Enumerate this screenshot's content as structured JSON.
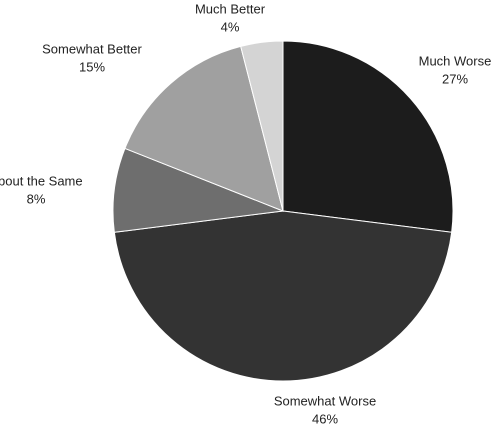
{
  "chart_data": {
    "type": "pie",
    "categories": [
      "Much Worse",
      "Somewhat Worse",
      "About the Same",
      "Somewhat Better",
      "Much Better"
    ],
    "values": [
      27,
      46,
      8,
      15,
      4
    ],
    "value_labels": [
      "27%",
      "46%",
      "8%",
      "15%",
      "4%"
    ],
    "colors": [
      "#1c1c1c",
      "#333333",
      "#6e6e6e",
      "#a0a0a0",
      "#d4d4d4"
    ]
  }
}
